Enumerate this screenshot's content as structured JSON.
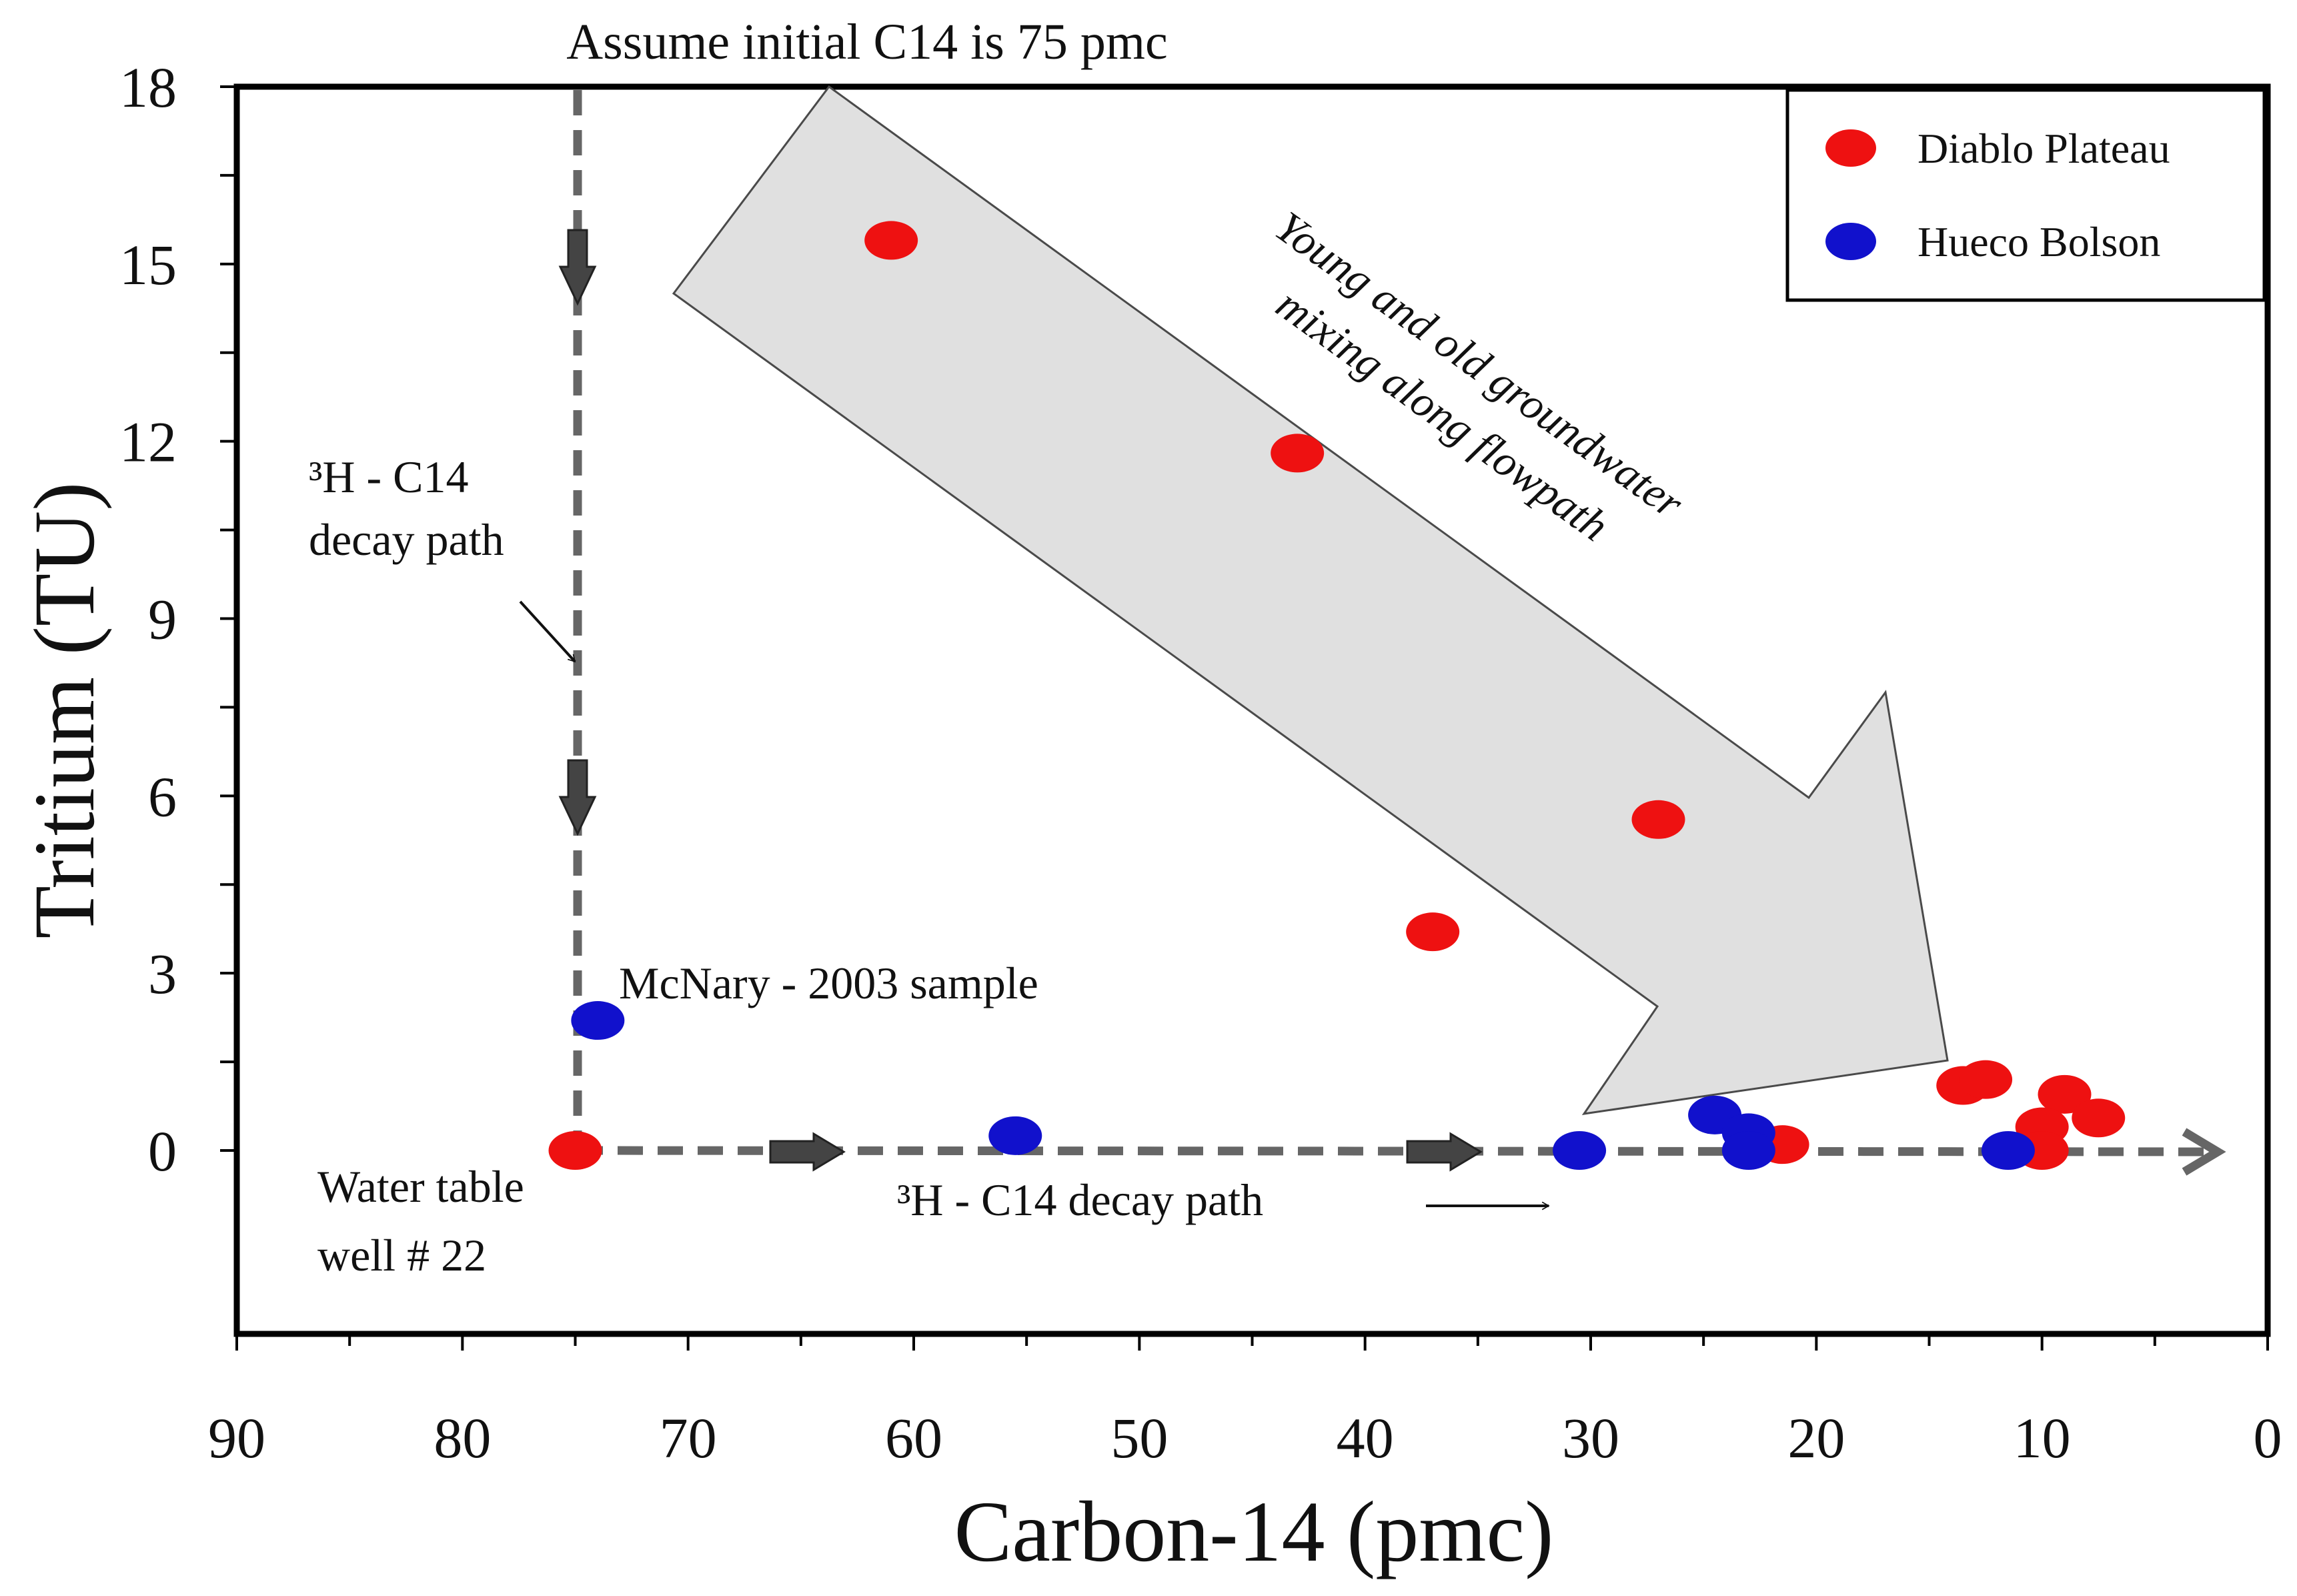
{
  "chart_data": {
    "type": "scatter",
    "title": "Assume initial C14 is 75 pmc",
    "xlabel": "Carbon-14 (pmc)",
    "ylabel": "Tritium (TU)",
    "xlim": [
      90,
      0
    ],
    "ylim": [
      -3,
      18
    ],
    "x_reversed": true,
    "x_ticks": [
      90,
      80,
      70,
      60,
      50,
      40,
      30,
      20,
      10,
      0
    ],
    "y_ticks": [
      0,
      3,
      6,
      9,
      12,
      15,
      18
    ],
    "grid": false,
    "legend_position": "top-right",
    "series": [
      {
        "name": "Diablo Plateau",
        "color": "#ee1111",
        "points": [
          {
            "x": 61,
            "y": 15.4
          },
          {
            "x": 43,
            "y": 11.8
          },
          {
            "x": 27,
            "y": 5.6
          },
          {
            "x": 37,
            "y": 3.7
          },
          {
            "x": 75,
            "y": 0.0
          },
          {
            "x": 21.5,
            "y": 0.1
          },
          {
            "x": 13.5,
            "y": 1.1
          },
          {
            "x": 12.5,
            "y": 1.2
          },
          {
            "x": 9,
            "y": 0.95
          },
          {
            "x": 7.5,
            "y": 0.55
          },
          {
            "x": 10,
            "y": 0.4
          },
          {
            "x": 10,
            "y": 0.0
          }
        ]
      },
      {
        "name": "Hueco Bolson",
        "color": "#1111cc",
        "points": [
          {
            "x": 74,
            "y": 2.2
          },
          {
            "x": 55.5,
            "y": 0.25
          },
          {
            "x": 30.5,
            "y": 0.0
          },
          {
            "x": 24.5,
            "y": 0.6
          },
          {
            "x": 23,
            "y": 0.3
          },
          {
            "x": 23,
            "y": 0.0
          },
          {
            "x": 11.5,
            "y": 0.0
          }
        ]
      }
    ],
    "annotations": {
      "flow_arrow_line1": "Young and old groundwater",
      "flow_arrow_line2": "mixing along flowpath",
      "vertical_path_line1": "³H - C14",
      "vertical_path_line2": "decay path",
      "horizontal_path": "³H - C14 decay path",
      "mcnary": "McNary - 2003 sample",
      "well_line1": "Water table",
      "well_line2": "well # 22"
    }
  }
}
